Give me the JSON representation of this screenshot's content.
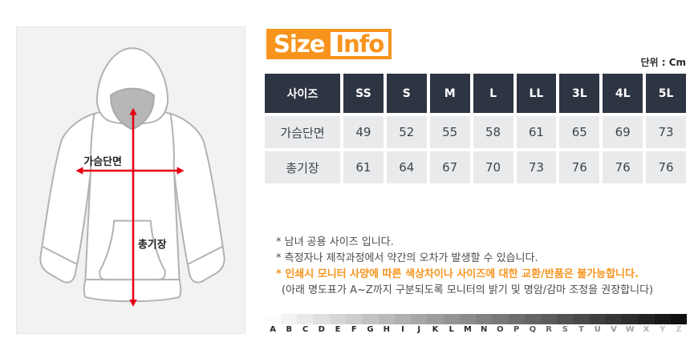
{
  "title": {
    "left": "Size",
    "right": "Info"
  },
  "unit_label": "단위 : Cm",
  "diagram": {
    "chest_label": "가슴단면",
    "length_label": "총기장"
  },
  "size_table": {
    "header": [
      "사이즈",
      "SS",
      "S",
      "M",
      "L",
      "LL",
      "3L",
      "4L",
      "5L"
    ],
    "rows": [
      {
        "label": "가슴단면",
        "values": [
          "49",
          "52",
          "55",
          "58",
          "61",
          "65",
          "69",
          "73"
        ]
      },
      {
        "label": "총기장",
        "values": [
          "61",
          "64",
          "67",
          "70",
          "73",
          "76",
          "76",
          "76"
        ]
      }
    ]
  },
  "notes": [
    {
      "text": "* 남녀 공용 사이즈 입니다.",
      "emphasis": false,
      "indent": false
    },
    {
      "text": "* 측정자나 제작과정에서 약간의 오차가 발생할 수 있습니다.",
      "emphasis": false,
      "indent": false
    },
    {
      "text": "* 인쇄시 모니터 사양에 따른 색상차이나 사이즈에 대한 교환/반품은 불가능합니다.",
      "emphasis": true,
      "indent": false
    },
    {
      "text": "(아래 명도표가 A~Z까지 구분되도록 모니터의 밝기 및 명암/감마 조정을 권장합니다)",
      "emphasis": false,
      "indent": true
    }
  ],
  "grayscale_letters": [
    "A",
    "B",
    "C",
    "D",
    "E",
    "F",
    "G",
    "H",
    "I",
    "J",
    "K",
    "L",
    "M",
    "N",
    "O",
    "P",
    "Q",
    "R",
    "S",
    "T",
    "U",
    "V",
    "W",
    "X",
    "Y",
    "Z"
  ],
  "colors": {
    "accent_orange": "#f7941d",
    "table_header_bg": "#2d3442",
    "table_cell_bg": "#e9eaeb",
    "arrow_red": "#e60014",
    "sketch_gray": "#b2b2b2",
    "hood_opening_gray": "#b7b7b7"
  }
}
